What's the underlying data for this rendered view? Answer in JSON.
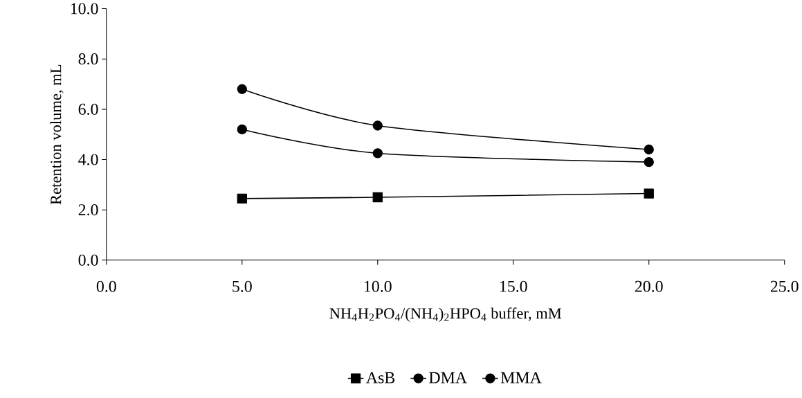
{
  "chart_data": {
    "type": "line",
    "xlabel": "NH$_{4}$H$_{2}$PO$_{4}$/(NH$_{4}$)$_{2}$HPO$_{4}$ buffer, mM",
    "ylabel": "Retention volume, mL",
    "x": [
      5,
      10,
      20
    ],
    "series": [
      {
        "name": "AsB",
        "color": "#000000",
        "marker": "square",
        "values": [
          2.45,
          2.5,
          2.65
        ]
      },
      {
        "name": "DMA",
        "color": "#000000",
        "marker": "circle",
        "values": [
          5.2,
          4.25,
          3.9
        ]
      },
      {
        "name": "MMA",
        "color": "#000000",
        "marker": "circle",
        "values": [
          6.8,
          5.35,
          4.4
        ]
      }
    ],
    "xlim": [
      0,
      25
    ],
    "ylim": [
      0,
      10
    ],
    "xticks": [
      {
        "value": 0,
        "label": "0.0"
      },
      {
        "value": 5,
        "label": "5.0"
      },
      {
        "value": 10,
        "label": "10.0"
      },
      {
        "value": 15,
        "label": "15.0"
      },
      {
        "value": 20,
        "label": "20.0"
      },
      {
        "value": 25,
        "label": "25.0"
      }
    ],
    "yticks": [
      {
        "value": 0,
        "label": "0.0"
      },
      {
        "value": 2,
        "label": "2.0"
      },
      {
        "value": 4,
        "label": "4.0"
      },
      {
        "value": 6,
        "label": "6.0"
      },
      {
        "value": 8,
        "label": "8.0"
      },
      {
        "value": 10,
        "label": "10.0"
      }
    ],
    "legend": "bottom",
    "line_style": "solid"
  }
}
